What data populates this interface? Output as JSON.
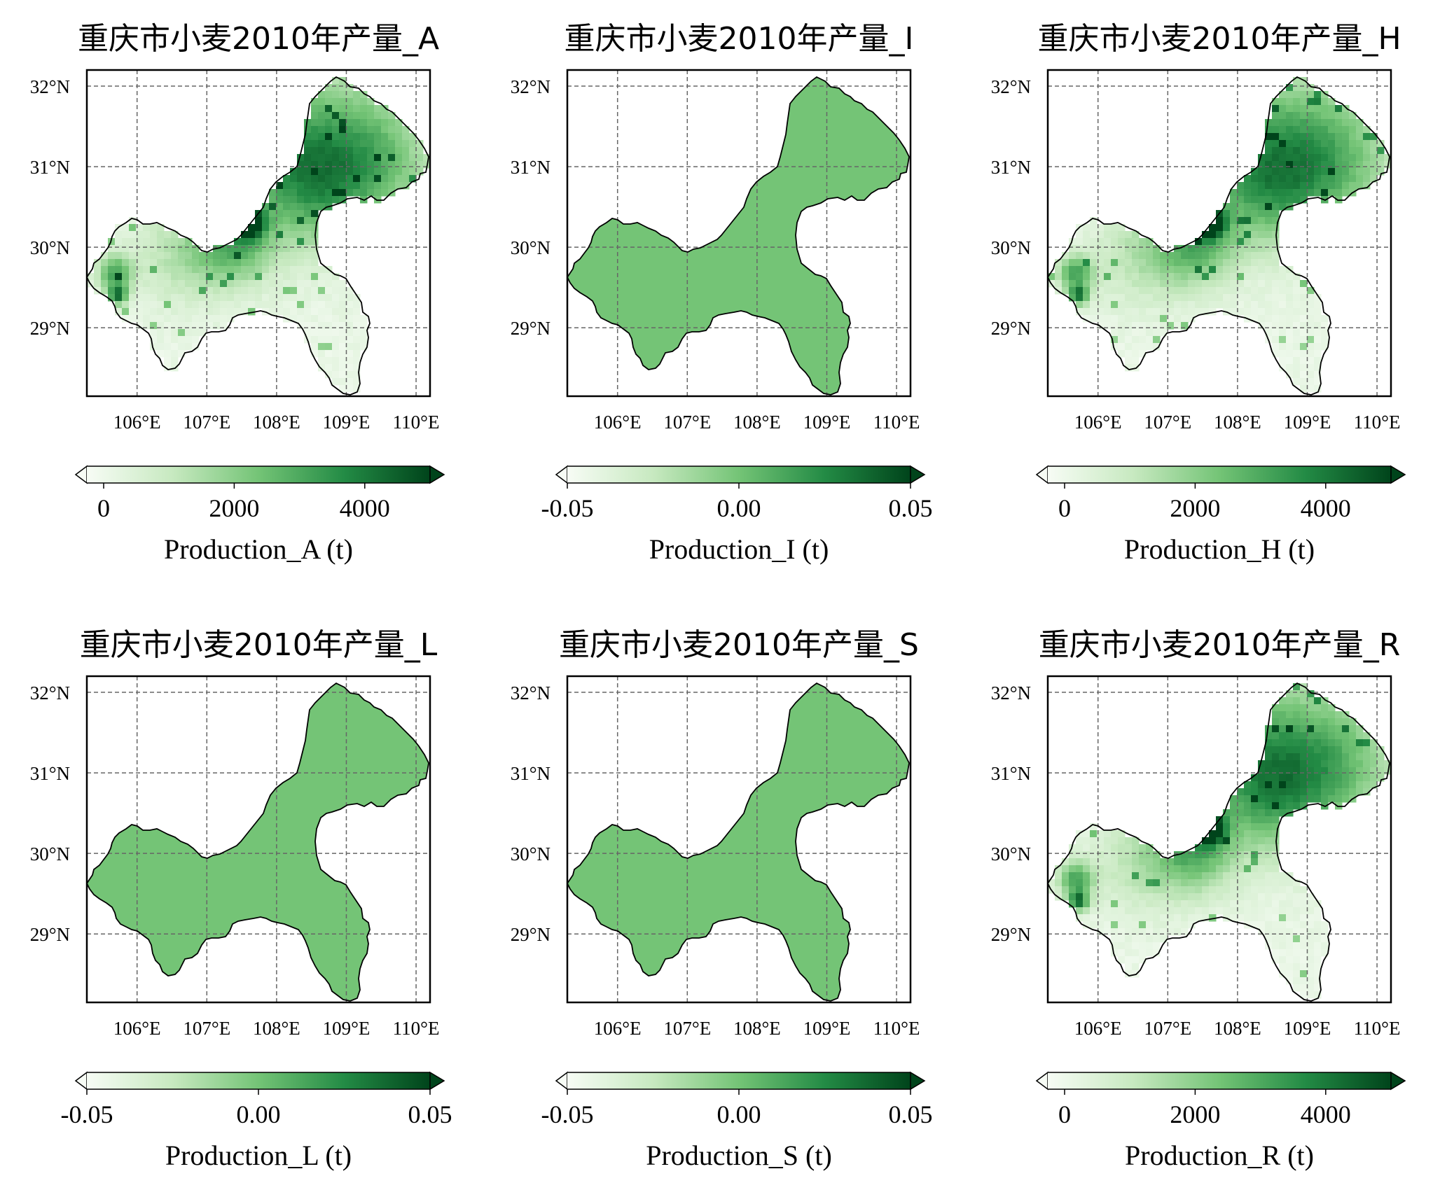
{
  "figure": {
    "x_ticks": [
      "106°E",
      "107°E",
      "108°E",
      "109°E",
      "110°E"
    ],
    "y_ticks": [
      "32°N",
      "31°N",
      "30°N",
      "29°N"
    ],
    "colormap": [
      "#f7fcf5",
      "#c7e9c0",
      "#74c476",
      "#238b45",
      "#00441b"
    ],
    "panels": [
      {
        "id": "A",
        "title": "重庆市小麦2010年产量_A",
        "colorbar_label": "Production_A (t)",
        "colorbar_ticks": [
          "0",
          "2000",
          "4000"
        ],
        "fill": "pattern"
      },
      {
        "id": "I",
        "title": "重庆市小麦2010年产量_I",
        "colorbar_label": "Production_I (t)",
        "colorbar_ticks": [
          "-0.05",
          "0.00",
          "0.05"
        ],
        "fill": "#74c476"
      },
      {
        "id": "H",
        "title": "重庆市小麦2010年产量_H",
        "colorbar_label": "Production_H (t)",
        "colorbar_ticks": [
          "0",
          "2000",
          "4000"
        ],
        "fill": "pattern"
      },
      {
        "id": "L",
        "title": "重庆市小麦2010年产量_L",
        "colorbar_label": "Production_L (t)",
        "colorbar_ticks": [
          "-0.05",
          "0.00",
          "0.05"
        ],
        "fill": "#74c476"
      },
      {
        "id": "S",
        "title": "重庆市小麦2010年产量_S",
        "colorbar_label": "Production_S (t)",
        "colorbar_ticks": [
          "-0.05",
          "0.00",
          "0.05"
        ],
        "fill": "#74c476"
      },
      {
        "id": "R",
        "title": "重庆市小麦2010年产量_R",
        "colorbar_label": "Production_R (t)",
        "colorbar_ticks": [
          "0",
          "2000",
          "4000"
        ],
        "fill": "pattern"
      }
    ]
  }
}
